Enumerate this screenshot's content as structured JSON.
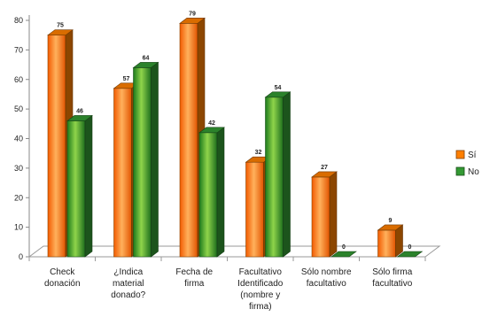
{
  "chart_data": {
    "type": "bar",
    "bar_style": "3d",
    "categories": [
      [
        "Check",
        "donación"
      ],
      [
        "¿Indica",
        "material",
        "donado?"
      ],
      [
        "Fecha de",
        "firma"
      ],
      [
        "Facultativo",
        "Identificado",
        "(nombre y",
        "firma)"
      ],
      [
        "Sólo nombre",
        "facultativo"
      ],
      [
        "Sólo firma",
        "facultativo"
      ]
    ],
    "series": [
      {
        "name": "Sí",
        "values": [
          75,
          57,
          79,
          32,
          27,
          9
        ],
        "color": "#ff7f00"
      },
      {
        "name": "No",
        "values": [
          46,
          64,
          42,
          54,
          0,
          0
        ],
        "color": "#339933"
      }
    ],
    "ylim": [
      0,
      80
    ],
    "yticks": [
      0,
      10,
      20,
      30,
      40,
      50,
      60,
      70,
      80
    ],
    "grid": false,
    "legend_position": "right",
    "title": "",
    "xlabel": "",
    "ylabel": ""
  }
}
